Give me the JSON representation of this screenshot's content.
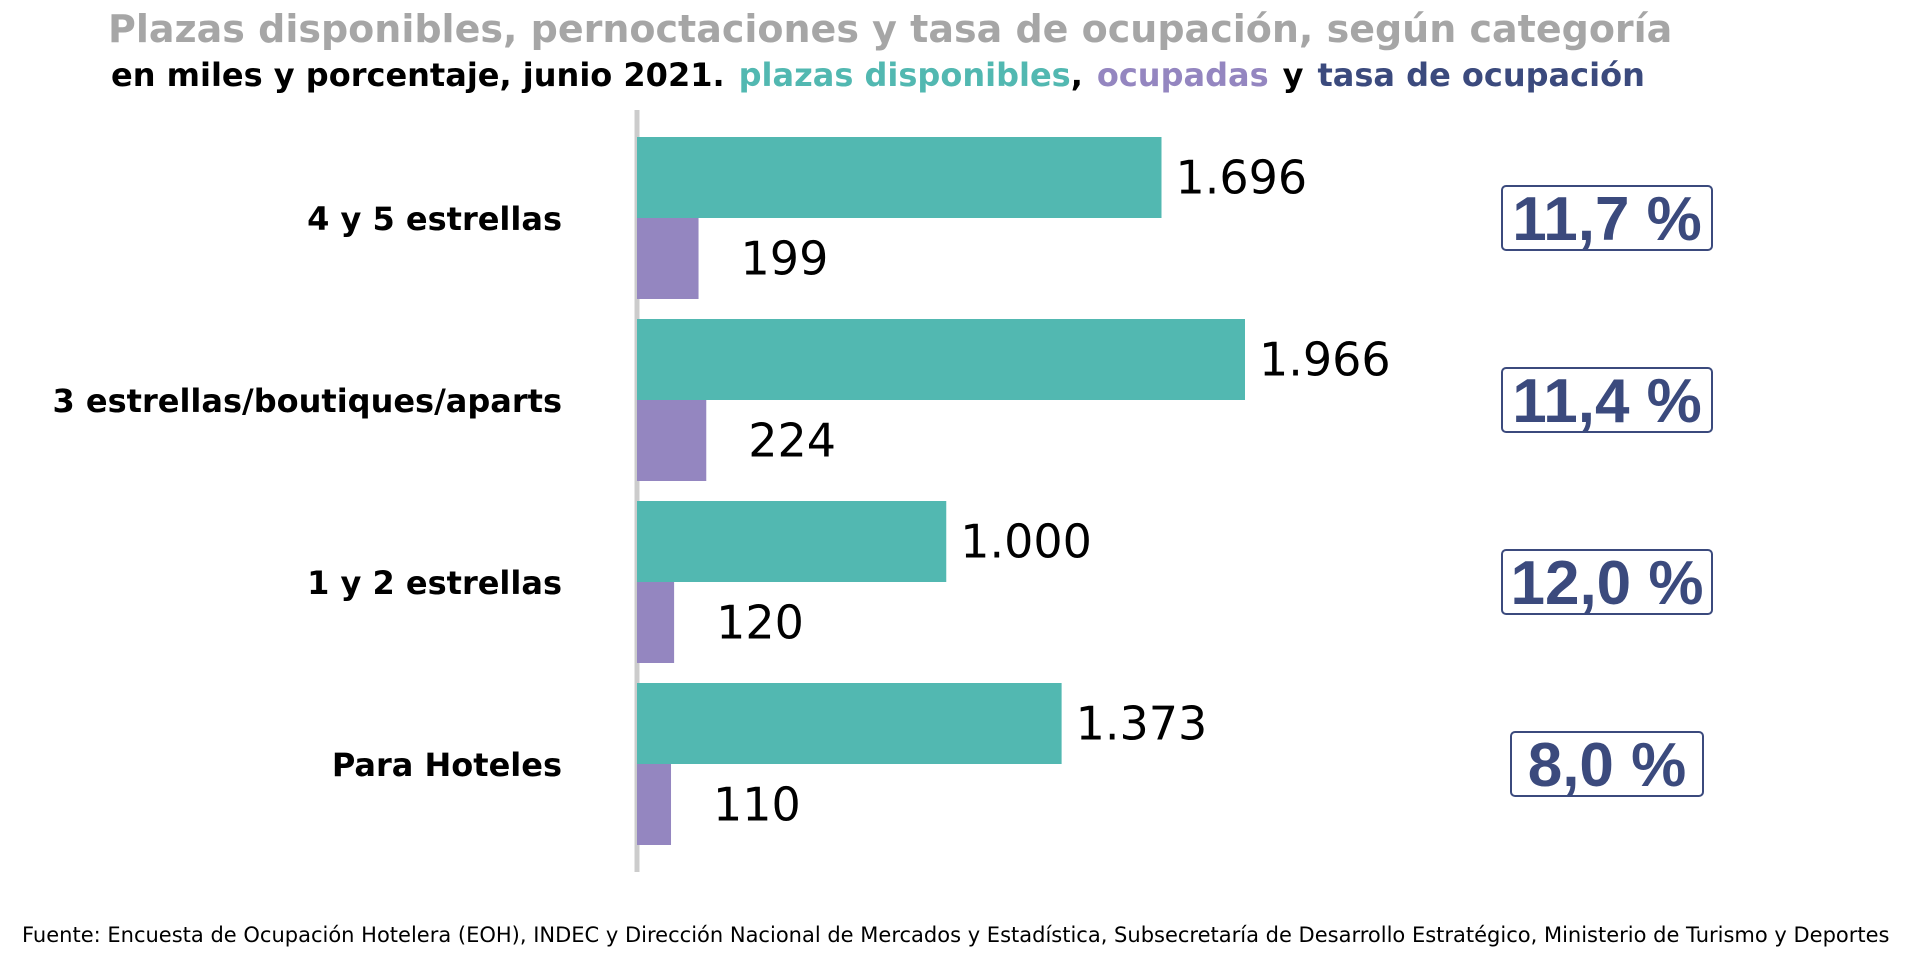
{
  "chart_data": {
    "type": "bar",
    "orientation": "horizontal",
    "title": "Plazas disponibles, pernoctaciones y tasa de ocupación, según categoría",
    "subtitle_prefix": "en miles y porcentaje, junio 2021.",
    "legend_items": [
      {
        "label": "plazas disponibles",
        "color": "#52b8b1"
      },
      {
        "label": "ocupadas",
        "color": "#9486c0"
      },
      {
        "label": "tasa de ocupación",
        "color": "#3b4a7d"
      }
    ],
    "legend_separators": [
      ",",
      "y"
    ],
    "categories": [
      "4 y 5 estrellas",
      "3 estrellas/boutiques/aparts",
      "1 y 2 estrellas",
      "Para Hoteles"
    ],
    "series": [
      {
        "name": "plazas disponibles",
        "color": "#52b8b1",
        "values": [
          1696,
          1966,
          1000,
          1373
        ],
        "labels": [
          "1.696",
          "1.966",
          "1.000",
          "1.373"
        ]
      },
      {
        "name": "ocupadas",
        "color": "#9486c0",
        "values": [
          199,
          224,
          120,
          110
        ],
        "labels": [
          "199",
          "224",
          "120",
          "110"
        ]
      }
    ],
    "occupancy_rate": {
      "name": "tasa de ocupación",
      "color": "#3b4a7d",
      "values": [
        11.7,
        11.4,
        12.0,
        8.0
      ],
      "labels": [
        "11,7 %",
        "11,4 %",
        "12,0 %",
        "8,0 %"
      ]
    },
    "xlim": [
      0,
      1966
    ],
    "grid": false,
    "legend_placement": "subtitle"
  },
  "source": "Fuente: Encuesta de Ocupación Hotelera (EOH), INDEC y Dirección Nacional de Mercados y Estadística, Subsecretaría de Desarrollo Estratégico, Ministerio de Turismo y Deportes"
}
